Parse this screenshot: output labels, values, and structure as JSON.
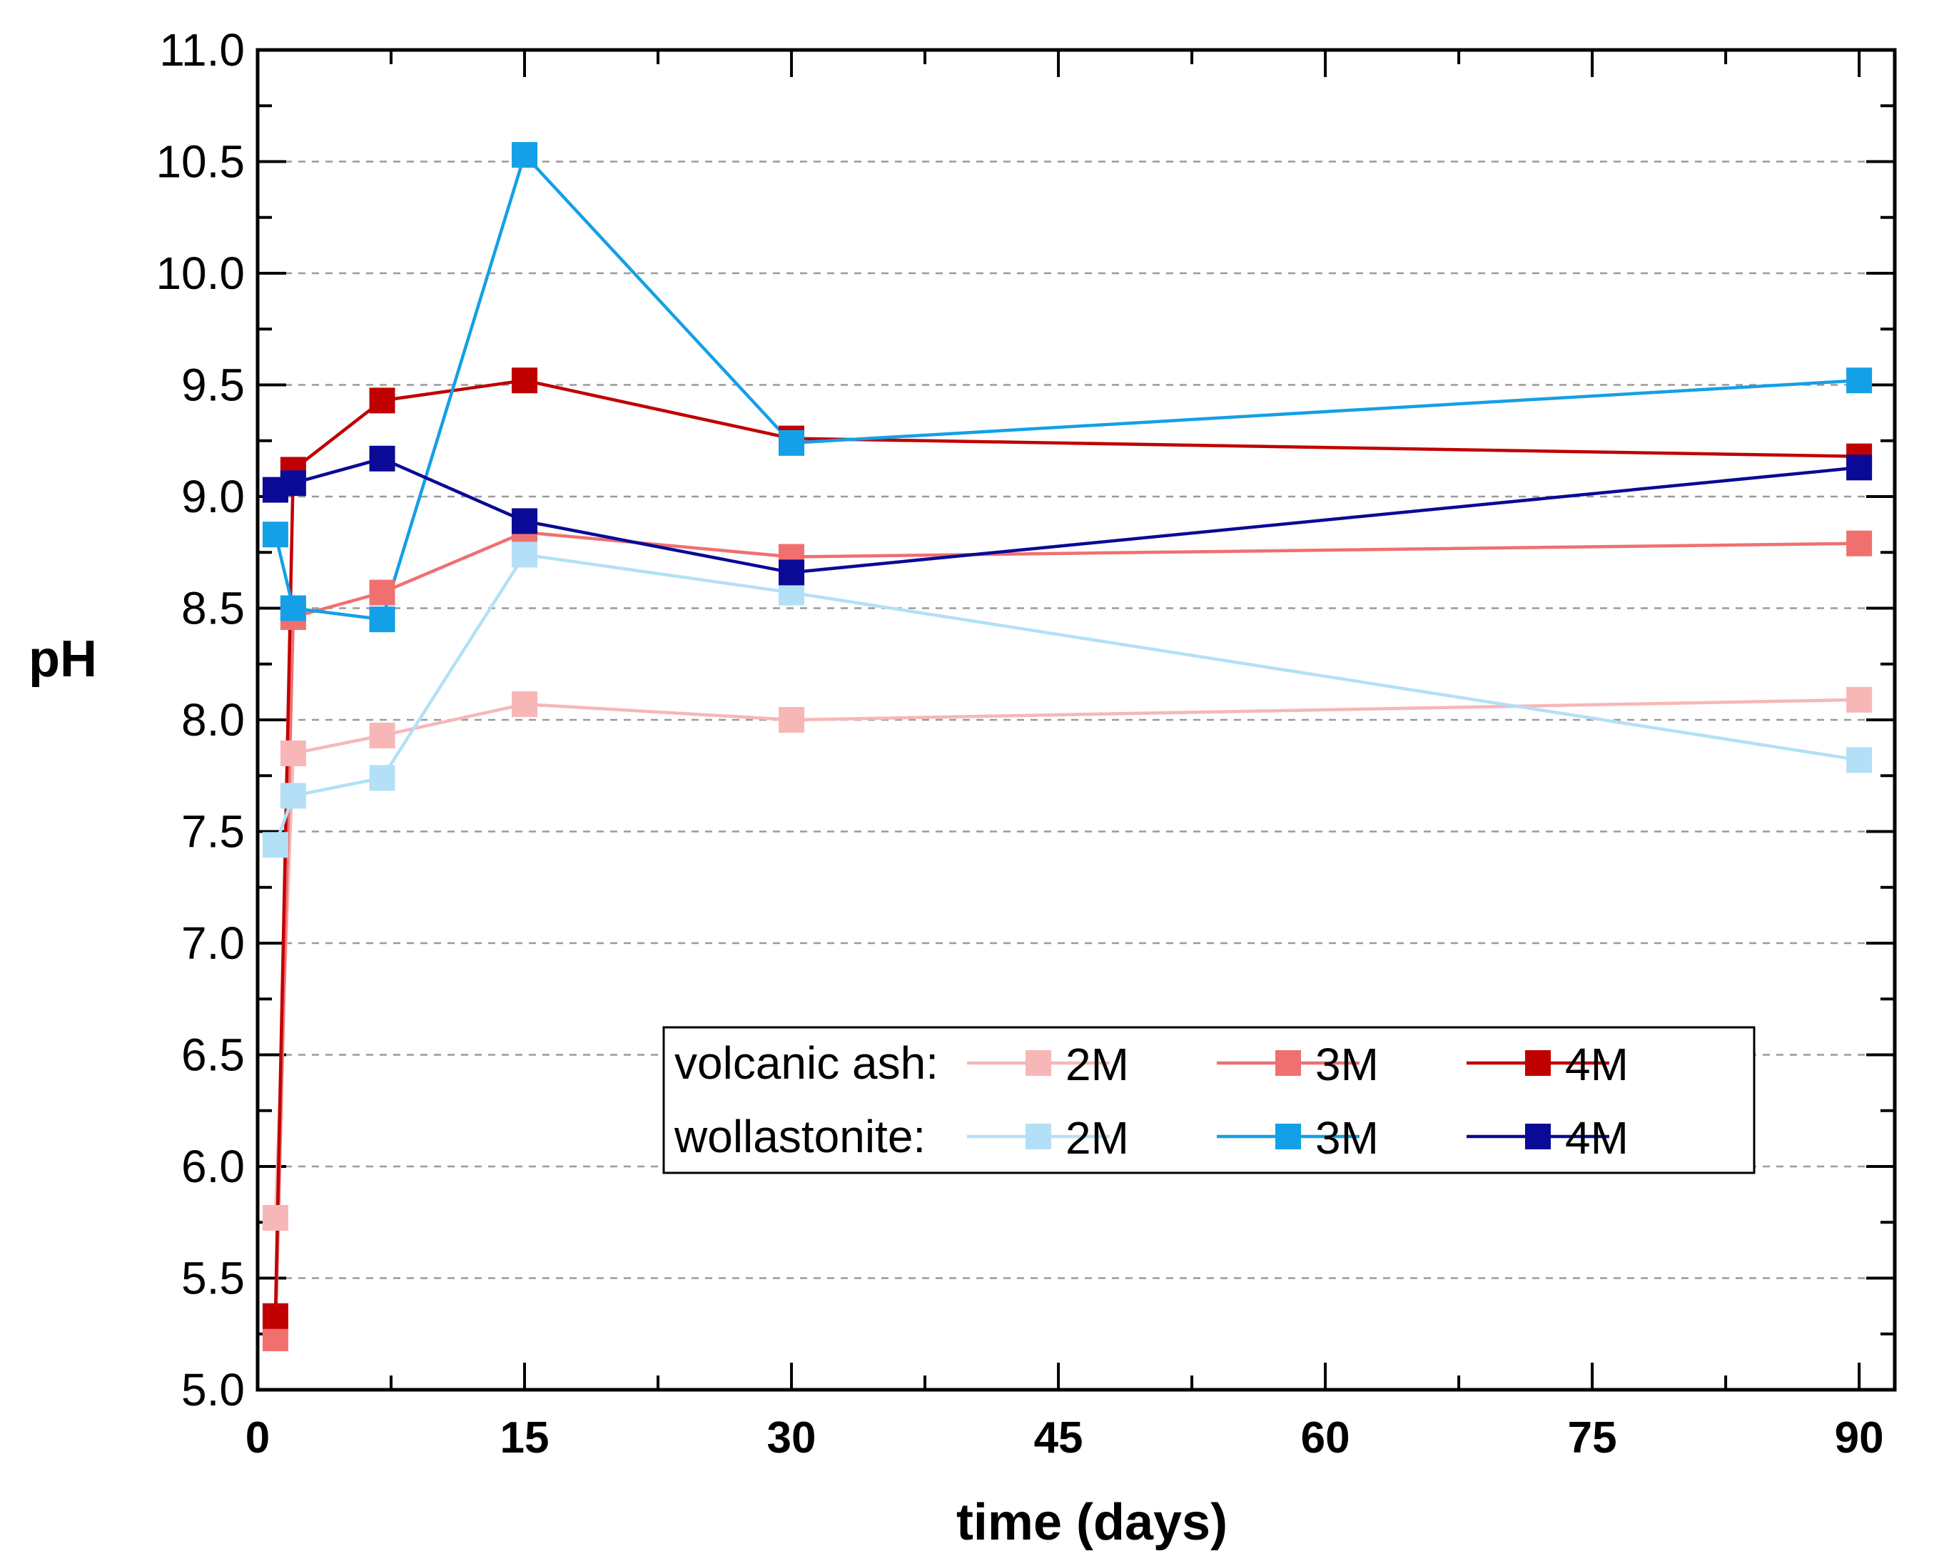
{
  "chart_data": {
    "type": "line",
    "xlabel": "time (days)",
    "ylabel": "pH",
    "xlim": [
      0,
      92
    ],
    "ylim": [
      5.0,
      11.0
    ],
    "xticks": [
      "0",
      "15",
      "30",
      "45",
      "60",
      "75",
      "90"
    ],
    "xtick_values": [
      0,
      15,
      30,
      45,
      60,
      75,
      90
    ],
    "yticks": [
      "5.0",
      "5.5",
      "6.0",
      "6.5",
      "7.0",
      "7.5",
      "8.0",
      "8.5",
      "9.0",
      "9.5",
      "10.0",
      "10.5",
      "11.0"
    ],
    "ytick_values": [
      5.0,
      5.5,
      6.0,
      6.5,
      7.0,
      7.5,
      8.0,
      8.5,
      9.0,
      9.5,
      10.0,
      10.5,
      11.0
    ],
    "grid": "horizontal dashed",
    "legend_position": "lower-right",
    "legend_rows": [
      {
        "label": "volcanic ash:",
        "entries": [
          "2M",
          "3M",
          "4M"
        ]
      },
      {
        "label": "wollastonite:",
        "entries": [
          "2M",
          "3M",
          "4M"
        ]
      }
    ],
    "series": [
      {
        "name": "2M",
        "group": "volcanic ash",
        "color": "#f7b7b7",
        "x": [
          1,
          2,
          7,
          15,
          30,
          90
        ],
        "y": [
          5.77,
          7.85,
          7.93,
          8.07,
          8.0,
          8.09
        ]
      },
      {
        "name": "3M",
        "group": "volcanic ash",
        "color": "#f07070",
        "x": [
          1,
          2,
          7,
          15,
          30,
          90
        ],
        "y": [
          5.23,
          8.46,
          8.57,
          8.84,
          8.73,
          8.79
        ]
      },
      {
        "name": "4M",
        "group": "volcanic ash",
        "color": "#c00000",
        "x": [
          1,
          2,
          7,
          15,
          30,
          90
        ],
        "y": [
          5.33,
          9.12,
          9.43,
          9.52,
          9.26,
          9.18
        ]
      },
      {
        "name": "2M",
        "group": "wollastonite",
        "color": "#b3e0f7",
        "x": [
          1,
          2,
          7,
          15,
          30,
          90
        ],
        "y": [
          7.44,
          7.66,
          7.74,
          8.74,
          8.57,
          7.82
        ]
      },
      {
        "name": "3M",
        "group": "wollastonite",
        "color": "#14a0e6",
        "x": [
          1,
          2,
          7,
          15,
          30,
          90
        ],
        "y": [
          8.83,
          8.5,
          8.45,
          10.53,
          9.24,
          9.52
        ]
      },
      {
        "name": "4M",
        "group": "wollastonite",
        "color": "#0a0a96",
        "x": [
          1,
          2,
          7,
          15,
          30,
          90
        ],
        "y": [
          9.03,
          9.06,
          9.17,
          8.89,
          8.66,
          9.13
        ]
      }
    ]
  }
}
